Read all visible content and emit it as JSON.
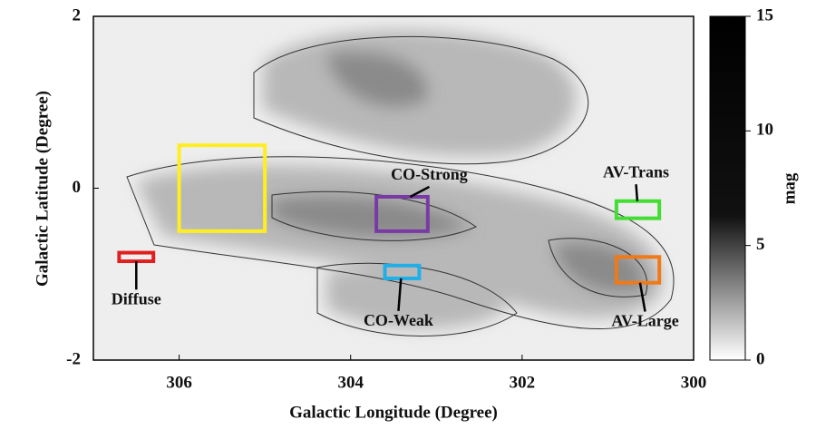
{
  "chart_data": {
    "type": "map",
    "x_label": "Galactic Longitude (Degree)",
    "y_label": "Galactic Latitude (Degree)",
    "xlim": [
      307,
      300
    ],
    "xticks": [
      306,
      304,
      302,
      300
    ],
    "ylim": [
      -2,
      2
    ],
    "yticks": [
      -2,
      0,
      2
    ],
    "colorbar": {
      "label": "mag",
      "lim": [
        0,
        15
      ],
      "ticks": [
        0,
        5,
        10,
        15
      ]
    },
    "regions": [
      {
        "color": "#ffee22",
        "lon": [
          306,
          305
        ],
        "lat": [
          -0.5,
          0.5
        ]
      },
      {
        "name": "CO-Strong",
        "color": "#7a3aa6",
        "lon": [
          303.7,
          303.1
        ],
        "lat": [
          -0.5,
          -0.1
        ]
      },
      {
        "name": "CO-Weak",
        "color": "#22aee6",
        "lon": [
          303.6,
          303.2
        ],
        "lat": [
          -1.05,
          -0.9
        ]
      },
      {
        "name": "Diffuse",
        "color": "#e02020",
        "lon": [
          306.7,
          306.3
        ],
        "lat": [
          -0.85,
          -0.75
        ]
      },
      {
        "name": "AV-Trans",
        "color": "#44dd33",
        "lon": [
          300.9,
          300.4
        ],
        "lat": [
          -0.35,
          -0.15
        ]
      },
      {
        "name": "AV-Large",
        "color": "#f07a18",
        "lon": [
          300.9,
          300.4
        ],
        "lat": [
          -1.1,
          -0.8
        ]
      }
    ]
  }
}
